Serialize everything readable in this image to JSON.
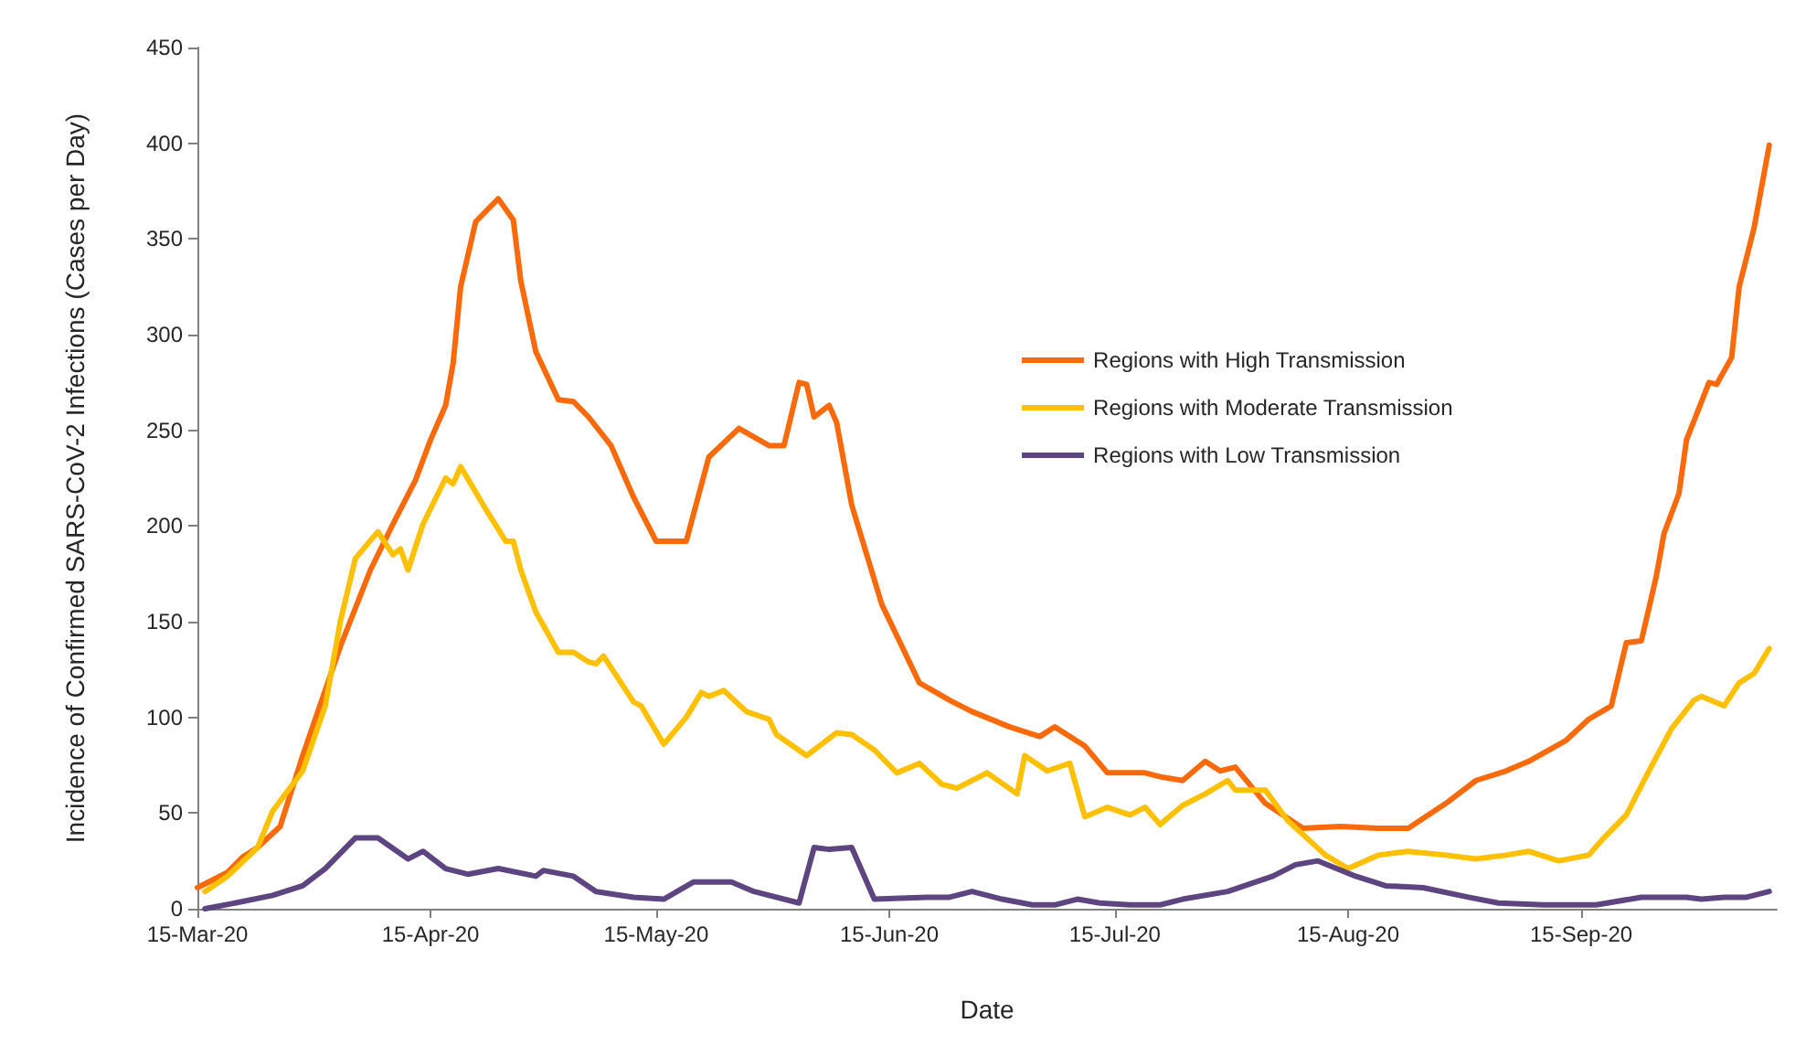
{
  "chart_data": {
    "type": "line",
    "xlabel": "Date",
    "ylabel": "Incidence of Confirmed SARS-CoV-2 Infections (Cases per Day)",
    "xlim": [
      "2020-03-15",
      "2020-10-11"
    ],
    "xticks": [
      {
        "value": "2020-03-15",
        "label": "15-Mar-20"
      },
      {
        "value": "2020-04-15",
        "label": "15-Apr-20"
      },
      {
        "value": "2020-05-15",
        "label": "15-May-20"
      },
      {
        "value": "2020-06-15",
        "label": "15-Jun-20"
      },
      {
        "value": "2020-07-15",
        "label": "15-Jul-20"
      },
      {
        "value": "2020-08-15",
        "label": "15-Aug-20"
      },
      {
        "value": "2020-09-15",
        "label": "15-Sep-20"
      }
    ],
    "ylim": [
      0,
      450
    ],
    "yticks": [
      0,
      50,
      100,
      150,
      200,
      250,
      300,
      350,
      400,
      450
    ],
    "grid": false,
    "legend": "top right",
    "marker": "none",
    "line_style": "solid",
    "series": [
      {
        "name": "Regions with High Transmission",
        "color": "#fa6a0a",
        "x": [
          "2020-03-15",
          "2020-03-19",
          "2020-03-21",
          "2020-03-23",
          "2020-03-26",
          "2020-03-29",
          "2020-04-03",
          "2020-04-07",
          "2020-04-10",
          "2020-04-13",
          "2020-04-15",
          "2020-04-17",
          "2020-04-18",
          "2020-04-19",
          "2020-04-21",
          "2020-04-24",
          "2020-04-26",
          "2020-04-27",
          "2020-04-29",
          "2020-05-02",
          "2020-05-04",
          "2020-05-06",
          "2020-05-09",
          "2020-05-12",
          "2020-05-15",
          "2020-05-19",
          "2020-05-22",
          "2020-05-26",
          "2020-05-30",
          "2020-06-01",
          "2020-06-03",
          "2020-06-04",
          "2020-06-05",
          "2020-06-07",
          "2020-06-08",
          "2020-06-10",
          "2020-06-14",
          "2020-06-19",
          "2020-06-23",
          "2020-06-26",
          "2020-07-01",
          "2020-07-05",
          "2020-07-07",
          "2020-07-11",
          "2020-07-14",
          "2020-07-19",
          "2020-07-21",
          "2020-07-24",
          "2020-07-27",
          "2020-07-29",
          "2020-07-31",
          "2020-08-04",
          "2020-08-09",
          "2020-08-14",
          "2020-08-19",
          "2020-08-23",
          "2020-08-28",
          "2020-09-01",
          "2020-09-05",
          "2020-09-08",
          "2020-09-13",
          "2020-09-16",
          "2020-09-19",
          "2020-09-21",
          "2020-09-23",
          "2020-09-25",
          "2020-09-26",
          "2020-09-28",
          "2020-09-29",
          "2020-10-02",
          "2020-10-03",
          "2020-10-05",
          "2020-10-06",
          "2020-10-08",
          "2020-10-10"
        ],
        "values": [
          11,
          19,
          27,
          32,
          43,
          80,
          137,
          177,
          201,
          224,
          245,
          263,
          285,
          325,
          359,
          371,
          360,
          328,
          291,
          266,
          265,
          257,
          242,
          215,
          192,
          192,
          236,
          251,
          242,
          242,
          275,
          274,
          257,
          263,
          254,
          211,
          159,
          118,
          109,
          103,
          95,
          90,
          95,
          85,
          71,
          71,
          69,
          67,
          77,
          72,
          74,
          55,
          42,
          43,
          42,
          42,
          55,
          67,
          72,
          77,
          88,
          99,
          106,
          139,
          140,
          174,
          196,
          217,
          245,
          275,
          274,
          288,
          325,
          356,
          399
        ]
      },
      {
        "name": "Regions with Moderate Transmission",
        "color": "#ffc000",
        "x": [
          "2020-03-16",
          "2020-03-19",
          "2020-03-23",
          "2020-03-25",
          "2020-03-29",
          "2020-04-01",
          "2020-04-03",
          "2020-04-05",
          "2020-04-08",
          "2020-04-10",
          "2020-04-11",
          "2020-04-12",
          "2020-04-14",
          "2020-04-17",
          "2020-04-18",
          "2020-04-19",
          "2020-04-22",
          "2020-04-25",
          "2020-04-26",
          "2020-04-27",
          "2020-04-29",
          "2020-05-02",
          "2020-05-04",
          "2020-05-06",
          "2020-05-07",
          "2020-05-08",
          "2020-05-12",
          "2020-05-13",
          "2020-05-16",
          "2020-05-19",
          "2020-05-21",
          "2020-05-22",
          "2020-05-24",
          "2020-05-27",
          "2020-05-30",
          "2020-05-31",
          "2020-06-04",
          "2020-06-08",
          "2020-06-10",
          "2020-06-13",
          "2020-06-16",
          "2020-06-19",
          "2020-06-22",
          "2020-06-24",
          "2020-06-28",
          "2020-07-02",
          "2020-07-03",
          "2020-07-06",
          "2020-07-09",
          "2020-07-11",
          "2020-07-14",
          "2020-07-17",
          "2020-07-19",
          "2020-07-21",
          "2020-07-24",
          "2020-07-27",
          "2020-07-30",
          "2020-07-31",
          "2020-08-04",
          "2020-08-07",
          "2020-08-12",
          "2020-08-15",
          "2020-08-19",
          "2020-08-23",
          "2020-08-28",
          "2020-09-01",
          "2020-09-05",
          "2020-09-08",
          "2020-09-12",
          "2020-09-16",
          "2020-09-18",
          "2020-09-21",
          "2020-09-24",
          "2020-09-27",
          "2020-09-30",
          "2020-10-01",
          "2020-10-04",
          "2020-10-06",
          "2020-10-08",
          "2020-10-10"
        ],
        "values": [
          9,
          17,
          32,
          51,
          72,
          106,
          150,
          183,
          197,
          185,
          188,
          177,
          201,
          225,
          222,
          231,
          211,
          192,
          192,
          177,
          155,
          134,
          134,
          129,
          128,
          132,
          108,
          106,
          86,
          100,
          113,
          111,
          114,
          103,
          99,
          91,
          80,
          92,
          91,
          83,
          71,
          76,
          65,
          63,
          71,
          60,
          80,
          72,
          76,
          48,
          53,
          49,
          53,
          44,
          54,
          60,
          67,
          62,
          62,
          46,
          28,
          21,
          28,
          30,
          28,
          26,
          28,
          30,
          25,
          28,
          37,
          49,
          72,
          94,
          109,
          111,
          106,
          118,
          123,
          136
        ]
      },
      {
        "name": "Regions with Low Transmission",
        "color": "#5c4580",
        "x": [
          "2020-03-16",
          "2020-03-20",
          "2020-03-25",
          "2020-03-29",
          "2020-04-01",
          "2020-04-05",
          "2020-04-08",
          "2020-04-12",
          "2020-04-14",
          "2020-04-17",
          "2020-04-20",
          "2020-04-24",
          "2020-04-29",
          "2020-04-30",
          "2020-05-04",
          "2020-05-07",
          "2020-05-12",
          "2020-05-16",
          "2020-05-20",
          "2020-05-22",
          "2020-05-25",
          "2020-05-28",
          "2020-06-03",
          "2020-06-05",
          "2020-06-07",
          "2020-06-10",
          "2020-06-13",
          "2020-06-20",
          "2020-06-23",
          "2020-06-26",
          "2020-06-30",
          "2020-07-04",
          "2020-07-07",
          "2020-07-10",
          "2020-07-13",
          "2020-07-17",
          "2020-07-21",
          "2020-07-24",
          "2020-07-30",
          "2020-08-05",
          "2020-08-08",
          "2020-08-11",
          "2020-08-16",
          "2020-08-20",
          "2020-08-25",
          "2020-08-31",
          "2020-09-04",
          "2020-09-10",
          "2020-09-17",
          "2020-09-23",
          "2020-09-29",
          "2020-10-01",
          "2020-10-04",
          "2020-10-07",
          "2020-10-10"
        ],
        "values": [
          0,
          3,
          7,
          12,
          21,
          37,
          37,
          26,
          30,
          21,
          18,
          21,
          17,
          20,
          17,
          9,
          6,
          5,
          14,
          14,
          14,
          9,
          3,
          32,
          31,
          32,
          5,
          6,
          6,
          9,
          5,
          2,
          2,
          5,
          3,
          2,
          2,
          5,
          9,
          17,
          23,
          25,
          17,
          12,
          11,
          6,
          3,
          2,
          2,
          6,
          6,
          5,
          6,
          6,
          9
        ]
      }
    ]
  }
}
